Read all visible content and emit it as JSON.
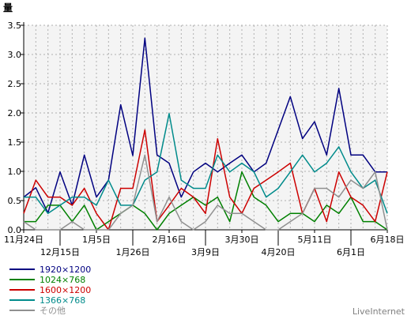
{
  "chart_data": {
    "type": "line",
    "ylabel": "量",
    "ylim": [
      0,
      3.5
    ],
    "grid": true,
    "legend_position": "bottom-left",
    "y_ticks": [
      "0.0",
      "0.5",
      "1.0",
      "1.5",
      "2.0",
      "2.5",
      "3.0",
      "3.5"
    ],
    "x_tick_labels": [
      "11月24日",
      "12月15日",
      "1月5日",
      "1月26日",
      "2月16日",
      "3月9日",
      "3月30日",
      "4月20日",
      "5月11日",
      "6月1日",
      "6月18日"
    ],
    "x_tick_points": [
      0,
      3,
      6,
      9,
      12,
      15,
      18,
      21,
      24,
      27,
      30
    ],
    "series": [
      {
        "name": "1920×1200",
        "color": "#000080",
        "values": [
          0.56,
          0.72,
          0.29,
          0.99,
          0.42,
          1.28,
          0.56,
          0.85,
          2.14,
          1.27,
          3.28,
          1.28,
          1.14,
          0.56,
          0.99,
          1.14,
          0.99,
          1.14,
          1.28,
          0.99,
          1.14,
          1.71,
          2.28,
          1.56,
          1.85,
          1.28,
          2.42,
          1.28,
          1.28,
          0.99,
          0.99
        ]
      },
      {
        "name": "1024×768",
        "color": "#008000",
        "values": [
          0.14,
          0.14,
          0.42,
          0.42,
          0.14,
          0.42,
          0.0,
          0.14,
          0.28,
          0.42,
          0.28,
          0.0,
          0.28,
          0.42,
          0.56,
          0.42,
          0.56,
          0.14,
          0.99,
          0.56,
          0.42,
          0.14,
          0.28,
          0.28,
          0.14,
          0.42,
          0.28,
          0.56,
          0.14,
          0.14,
          0.0
        ]
      },
      {
        "name": "1600×1200",
        "color": "#CC0000",
        "values": [
          0.28,
          0.85,
          0.56,
          0.56,
          0.42,
          0.71,
          0.28,
          0.0,
          0.71,
          0.71,
          1.71,
          0.14,
          0.42,
          0.71,
          0.56,
          0.28,
          1.56,
          0.56,
          0.28,
          0.71,
          0.85,
          0.99,
          1.14,
          0.28,
          0.71,
          0.14,
          0.99,
          0.56,
          0.42,
          0.14,
          0.99
        ]
      },
      {
        "name": "1366×768",
        "color": "#008B8B",
        "values": [
          0.56,
          0.56,
          0.28,
          0.42,
          0.56,
          0.56,
          0.42,
          0.85,
          0.42,
          0.42,
          0.85,
          0.99,
          1.99,
          0.85,
          0.71,
          0.71,
          1.28,
          0.99,
          1.14,
          0.99,
          0.56,
          0.71,
          0.99,
          1.28,
          0.99,
          1.14,
          1.42,
          0.99,
          0.71,
          0.85,
          0.28
        ]
      },
      {
        "name": "その他",
        "color": "#909090",
        "values": [
          0.14,
          0.0,
          0.0,
          0.0,
          0.14,
          0.0,
          0.0,
          0.0,
          0.28,
          0.42,
          1.28,
          0.14,
          0.56,
          0.14,
          0.0,
          0.14,
          0.42,
          0.28,
          0.28,
          0.14,
          0.0,
          0.0,
          0.14,
          0.28,
          0.71,
          0.71,
          0.56,
          0.85,
          0.71,
          0.99,
          0.0
        ]
      }
    ]
  },
  "watermark": "LiveInternet",
  "colors": {
    "plot_background": "#F4F4F4",
    "grid": "#B0B0B0",
    "axis": "#000000"
  }
}
